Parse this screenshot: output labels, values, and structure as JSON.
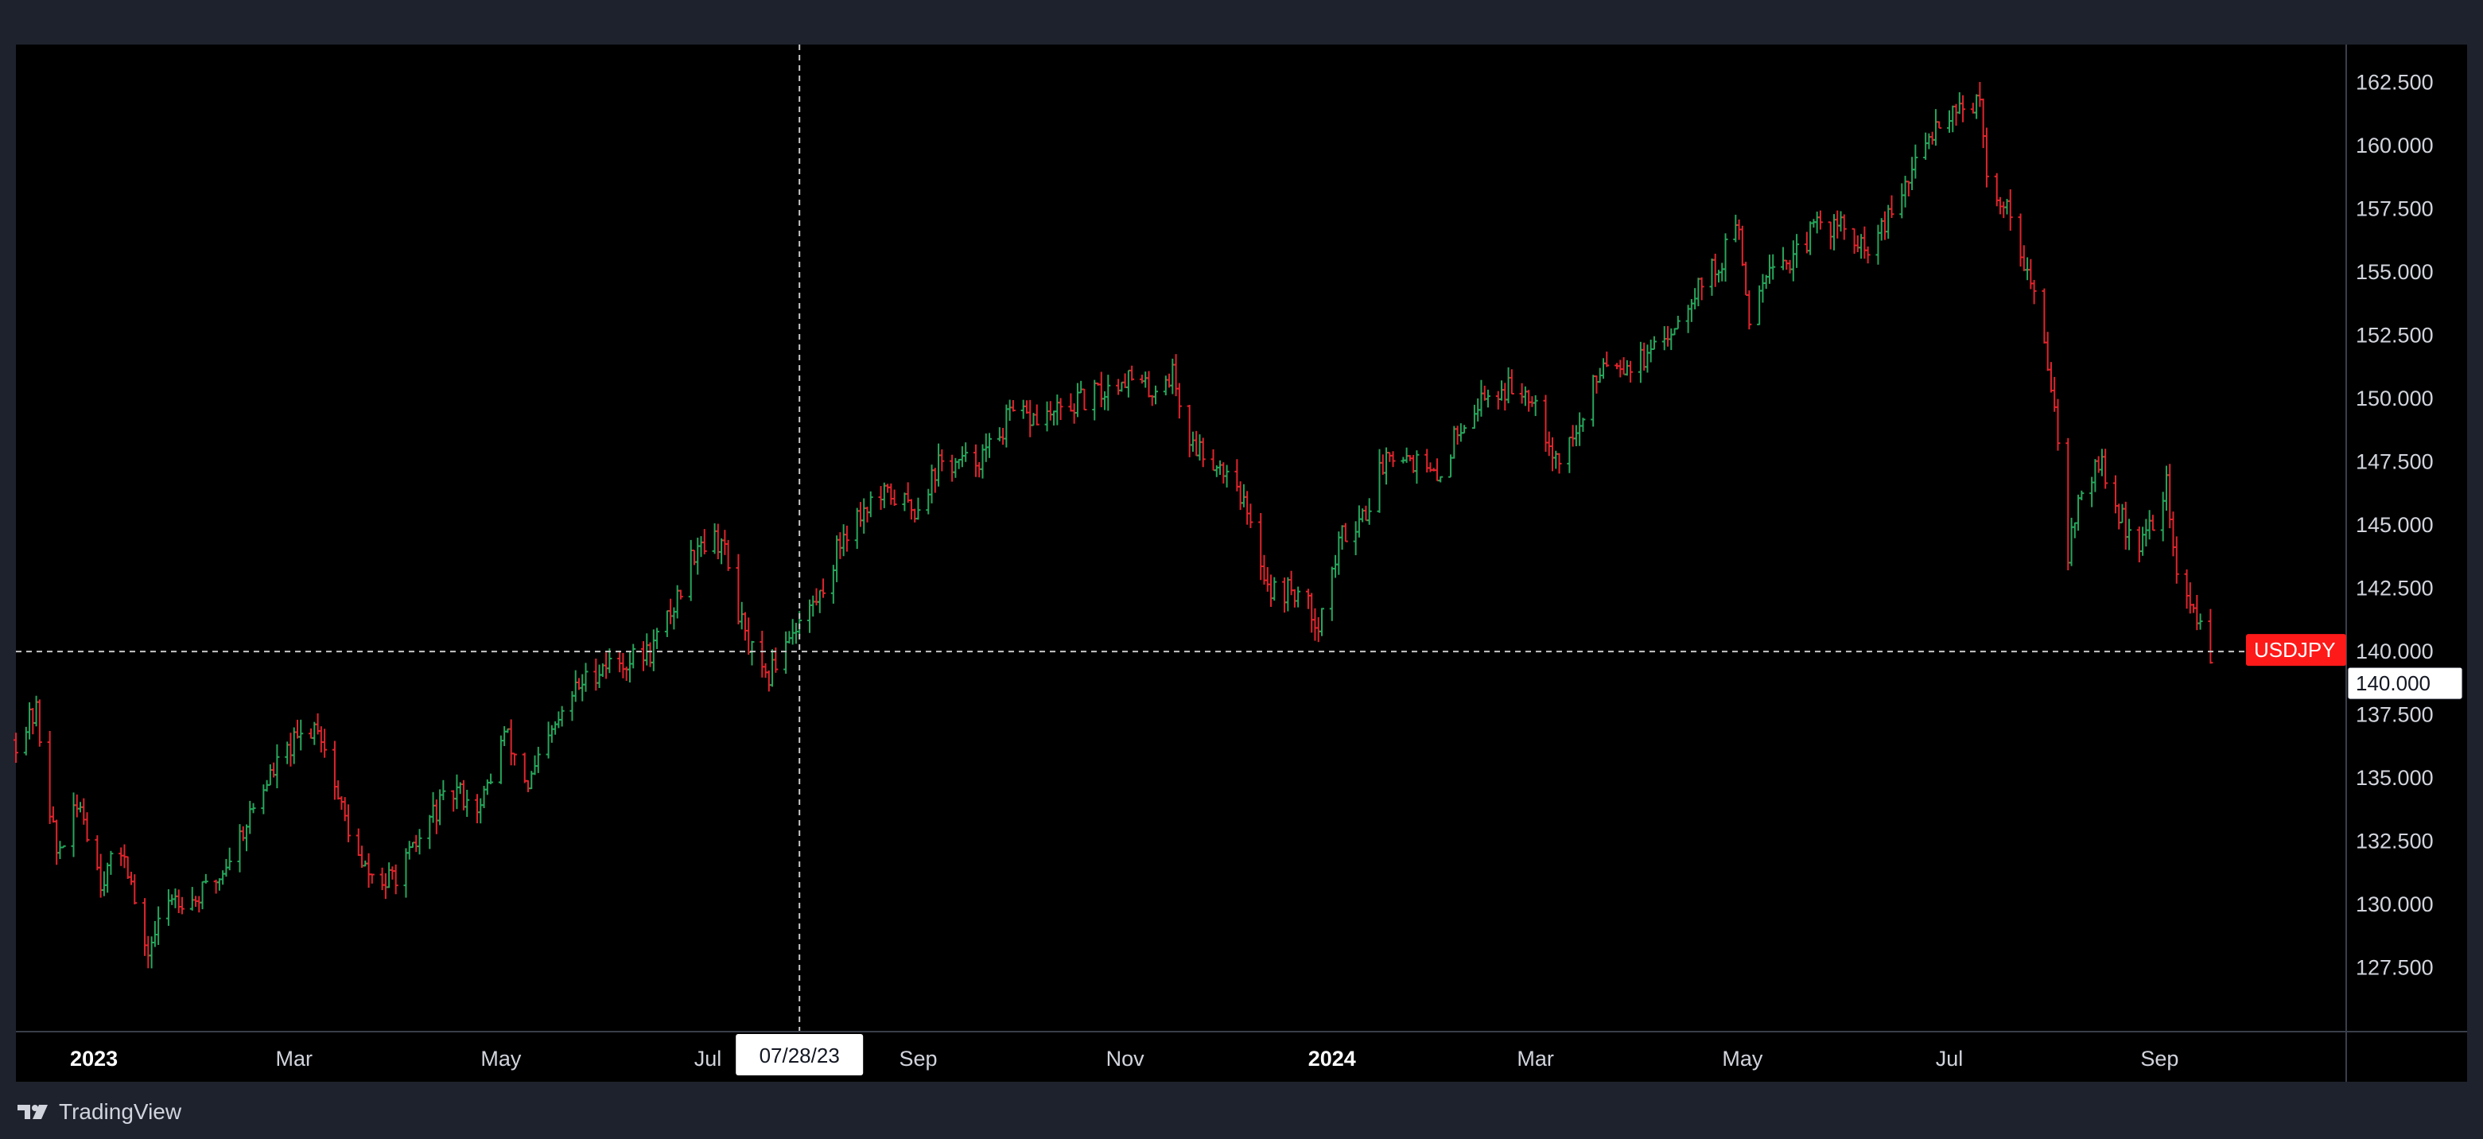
{
  "brand": {
    "name": "TradingView",
    "logo_icon": "tradingview-logo-icon"
  },
  "colors": {
    "background": "#000000",
    "frame": "#1e222d",
    "up": "#26a65b",
    "down": "#e0242c",
    "axis_text": "#d1d4dc",
    "crosshair": "#c8c8c8",
    "symbol_badge": "#ff1a1a"
  },
  "crosshair": {
    "date_label": "07/28/23",
    "price_label": "140.000"
  },
  "symbol": {
    "name": "USDJPY",
    "last_price": 140.0
  },
  "chart_data": {
    "type": "ohlc",
    "title": "",
    "series_name": "USDJPY",
    "ylim": [
      125.0,
      164.0
    ],
    "y_ticks": [
      127.5,
      130.0,
      132.5,
      135.0,
      137.5,
      140.0,
      142.5,
      145.0,
      147.5,
      150.0,
      152.5,
      155.0,
      157.5,
      160.0,
      162.5
    ],
    "y_tick_labels": [
      "127.500",
      "130.000",
      "132.500",
      "135.000",
      "137.500",
      "140.000",
      "142.500",
      "145.000",
      "147.500",
      "150.000",
      "152.500",
      "155.000",
      "157.500",
      "160.000",
      "162.500"
    ],
    "x_ticks": [
      {
        "label": "2023",
        "date": "2023-01-01",
        "major": true
      },
      {
        "label": "Mar",
        "date": "2023-03-01",
        "major": false
      },
      {
        "label": "May",
        "date": "2023-05-01",
        "major": false
      },
      {
        "label": "Jul",
        "date": "2023-07-01",
        "major": false
      },
      {
        "label": "Sep",
        "date": "2023-09-01",
        "major": false
      },
      {
        "label": "Nov",
        "date": "2023-11-01",
        "major": false
      },
      {
        "label": "2024",
        "date": "2024-01-01",
        "major": true
      },
      {
        "label": "Mar",
        "date": "2024-03-01",
        "major": false
      },
      {
        "label": "May",
        "date": "2024-05-01",
        "major": false
      },
      {
        "label": "Jul",
        "date": "2024-07-01",
        "major": false
      },
      {
        "label": "Sep",
        "date": "2024-09-01",
        "major": false
      }
    ],
    "x_range": [
      "2022-12-09",
      "2024-10-26"
    ],
    "crosshair_date": "2023-07-28",
    "crosshair_price": 140.0,
    "anchors": [
      [
        "2022-12-09",
        136.5
      ],
      [
        "2022-12-15",
        137.6
      ],
      [
        "2022-12-21",
        132.0
      ],
      [
        "2022-12-28",
        134.0
      ],
      [
        "2023-01-03",
        131.0
      ],
      [
        "2023-01-10",
        132.2
      ],
      [
        "2023-01-16",
        127.9
      ],
      [
        "2023-01-24",
        130.4
      ],
      [
        "2023-01-31",
        130.2
      ],
      [
        "2023-02-07",
        131.1
      ],
      [
        "2023-02-14",
        133.0
      ],
      [
        "2023-02-21",
        134.9
      ],
      [
        "2023-02-28",
        136.2
      ],
      [
        "2023-03-08",
        137.2
      ],
      [
        "2023-03-14",
        134.2
      ],
      [
        "2023-03-21",
        131.4
      ],
      [
        "2023-03-28",
        130.8
      ],
      [
        "2023-04-04",
        131.8
      ],
      [
        "2023-04-11",
        133.6
      ],
      [
        "2023-04-18",
        134.5
      ],
      [
        "2023-04-25",
        133.8
      ],
      [
        "2023-05-02",
        136.8
      ],
      [
        "2023-05-09",
        134.7
      ],
      [
        "2023-05-16",
        136.7
      ],
      [
        "2023-05-23",
        138.5
      ],
      [
        "2023-05-31",
        139.5
      ],
      [
        "2023-06-07",
        139.6
      ],
      [
        "2023-06-14",
        140.0
      ],
      [
        "2023-06-21",
        141.8
      ],
      [
        "2023-06-28",
        144.4
      ],
      [
        "2023-07-05",
        144.4
      ],
      [
        "2023-07-12",
        140.5
      ],
      [
        "2023-07-18",
        138.7
      ],
      [
        "2023-07-25",
        140.8
      ],
      [
        "2023-07-28",
        141.2
      ],
      [
        "2023-08-03",
        142.2
      ],
      [
        "2023-08-10",
        144.7
      ],
      [
        "2023-08-17",
        145.8
      ],
      [
        "2023-08-24",
        146.2
      ],
      [
        "2023-08-31",
        145.6
      ],
      [
        "2023-09-07",
        147.4
      ],
      [
        "2023-09-14",
        147.4
      ],
      [
        "2023-09-21",
        147.8
      ],
      [
        "2023-09-28",
        149.3
      ],
      [
        "2023-10-05",
        149.2
      ],
      [
        "2023-10-12",
        149.4
      ],
      [
        "2023-10-19",
        149.9
      ],
      [
        "2023-10-26",
        150.3
      ],
      [
        "2023-11-01",
        150.9
      ],
      [
        "2023-11-08",
        150.3
      ],
      [
        "2023-11-15",
        151.0
      ],
      [
        "2023-11-20",
        148.3
      ],
      [
        "2023-11-27",
        147.6
      ],
      [
        "2023-12-04",
        146.8
      ],
      [
        "2023-12-08",
        144.8
      ],
      [
        "2023-12-14",
        142.4
      ],
      [
        "2023-12-21",
        142.4
      ],
      [
        "2023-12-28",
        141.2
      ],
      [
        "2024-01-04",
        144.6
      ],
      [
        "2024-01-11",
        145.6
      ],
      [
        "2024-01-18",
        148.1
      ],
      [
        "2024-01-25",
        147.6
      ],
      [
        "2024-02-01",
        146.7
      ],
      [
        "2024-02-08",
        149.1
      ],
      [
        "2024-02-15",
        150.1
      ],
      [
        "2024-02-22",
        150.4
      ],
      [
        "2024-02-29",
        150.3
      ],
      [
        "2024-03-07",
        147.6
      ],
      [
        "2024-03-14",
        148.8
      ],
      [
        "2024-03-21",
        151.6
      ],
      [
        "2024-03-28",
        151.4
      ],
      [
        "2024-04-04",
        151.6
      ],
      [
        "2024-04-11",
        153.0
      ],
      [
        "2024-04-18",
        154.6
      ],
      [
        "2024-04-25",
        155.4
      ],
      [
        "2024-04-29",
        157.2
      ],
      [
        "2024-05-03",
        153.2
      ],
      [
        "2024-05-09",
        155.6
      ],
      [
        "2024-05-16",
        155.4
      ],
      [
        "2024-05-23",
        156.9
      ],
      [
        "2024-05-30",
        156.8
      ],
      [
        "2024-06-06",
        155.7
      ],
      [
        "2024-06-13",
        157.0
      ],
      [
        "2024-06-20",
        158.9
      ],
      [
        "2024-06-27",
        160.9
      ],
      [
        "2024-07-03",
        161.6
      ],
      [
        "2024-07-10",
        161.6
      ],
      [
        "2024-07-12",
        158.5
      ],
      [
        "2024-07-19",
        157.4
      ],
      [
        "2024-07-26",
        154.0
      ],
      [
        "2024-08-01",
        150.0
      ],
      [
        "2024-08-05",
        144.0
      ],
      [
        "2024-08-09",
        146.4
      ],
      [
        "2024-08-15",
        147.4
      ],
      [
        "2024-08-20",
        145.3
      ],
      [
        "2024-08-27",
        144.2
      ],
      [
        "2024-09-03",
        146.6
      ],
      [
        "2024-09-06",
        142.9
      ],
      [
        "2024-09-13",
        141.0
      ],
      [
        "2024-09-16",
        140.0
      ]
    ]
  }
}
